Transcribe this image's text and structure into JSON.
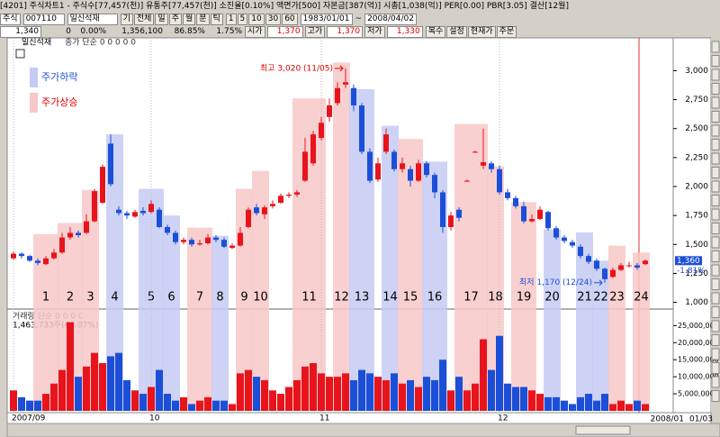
{
  "window": {
    "title": "[4201] 주식차트1 - 주식수[77,457(천)] 유통주[77,457(천)] 소진율[0.10%] 액면가[500] 자본금[387(억)] 시총[1,038(억)] PER[0.00] PBR[3.05] 결산[12월]"
  },
  "toolbar": {
    "market": "주식",
    "code": "007110",
    "name": "일신석재",
    "buttons": [
      "기",
      "전체",
      "일",
      "주",
      "월",
      "분",
      "틱"
    ],
    "intervals": [
      "1",
      "5",
      "10",
      "30",
      "60"
    ],
    "start_date": "1983/01/01",
    "end_date": "2008/04/02"
  },
  "quote": {
    "price": "1,340",
    "change": "0",
    "change_rate": "0.00%",
    "volume": "1,356,100",
    "ratio1": "86.85%",
    "ratio2": "1.75%",
    "fields": [
      {
        "label": "시가",
        "value": "1,370"
      },
      {
        "label": "고가",
        "value": "1,370"
      },
      {
        "label": "저가",
        "value": "1,330"
      }
    ],
    "buttons": [
      "복수",
      "설정",
      "현재가",
      "주문"
    ]
  },
  "chart_data": {
    "type": "candlestick",
    "title": "일신석재",
    "indicator": "종가 단순 0 0 0 0 0",
    "up_color": "#e8141c",
    "down_color": "#1c4fd8",
    "legend": [
      {
        "label": "주가하락",
        "color": "#c5cbf3"
      },
      {
        "label": "주가상승",
        "color": "#f8c8c8"
      }
    ],
    "ylim": [
      950,
      3260
    ],
    "yticks": [
      {
        "value": 1000,
        "label": "1,000"
      },
      {
        "value": 1250,
        "label": "1,250"
      },
      {
        "value": 1500,
        "label": "1,500"
      },
      {
        "value": 1750,
        "label": "1,750"
      },
      {
        "value": 2000,
        "label": "2,000"
      },
      {
        "value": 2250,
        "label": "2,250"
      },
      {
        "value": 2500,
        "label": "2,500"
      },
      {
        "value": 2750,
        "label": "2,750"
      },
      {
        "value": 3000,
        "label": "3,000"
      }
    ],
    "categories": [
      "2007/09",
      null,
      null,
      null,
      null,
      null,
      null,
      null,
      null,
      null,
      null,
      null,
      null,
      null,
      null,
      null,
      null,
      "10",
      null,
      null,
      null,
      null,
      null,
      null,
      null,
      null,
      null,
      null,
      null,
      null,
      null,
      null,
      null,
      null,
      null,
      null,
      null,
      null,
      "11",
      null,
      null,
      null,
      null,
      null,
      null,
      null,
      null,
      null,
      null,
      null,
      null,
      null,
      null,
      null,
      null,
      null,
      null,
      null,
      null,
      null,
      "12",
      null,
      null,
      null,
      null,
      null,
      null,
      null,
      null,
      null,
      null,
      null,
      null,
      null,
      null,
      null,
      null,
      null,
      "2008/01"
    ],
    "last_date": "01/03",
    "candles": [
      [
        1380,
        1440,
        1370,
        1420
      ],
      [
        1420,
        1430,
        1380,
        1400
      ],
      [
        1400,
        1410,
        1350,
        1360
      ],
      [
        1360,
        1380,
        1320,
        1340
      ],
      [
        1330,
        1400,
        1320,
        1380
      ],
      [
        1380,
        1460,
        1370,
        1430
      ],
      [
        1430,
        1600,
        1420,
        1560
      ],
      [
        1560,
        1650,
        1540,
        1600
      ],
      [
        1600,
        1620,
        1560,
        1580
      ],
      [
        1600,
        1760,
        1590,
        1700
      ],
      [
        1700,
        1980,
        1690,
        1960
      ],
      [
        1860,
        2190,
        1850,
        2170
      ],
      [
        2370,
        2450,
        2000,
        2020
      ],
      [
        1800,
        1830,
        1750,
        1770
      ],
      [
        1770,
        1790,
        1720,
        1750
      ],
      [
        1740,
        1800,
        1730,
        1780
      ],
      [
        1790,
        1820,
        1750,
        1770
      ],
      [
        1780,
        1880,
        1770,
        1850
      ],
      [
        1800,
        1820,
        1640,
        1650
      ],
      [
        1650,
        1670,
        1580,
        1600
      ],
      [
        1600,
        1620,
        1500,
        1520
      ],
      [
        1520,
        1560,
        1500,
        1540
      ],
      [
        1540,
        1560,
        1480,
        1500
      ],
      [
        1500,
        1540,
        1490,
        1510
      ],
      [
        1510,
        1590,
        1500,
        1560
      ],
      [
        1560,
        1580,
        1520,
        1540
      ],
      [
        1540,
        1560,
        1470,
        1480
      ],
      [
        1470,
        1510,
        1460,
        1490
      ],
      [
        1490,
        1650,
        1480,
        1600
      ],
      [
        1650,
        1820,
        1640,
        1800
      ],
      [
        1820,
        1850,
        1750,
        1770
      ],
      [
        1760,
        1840,
        1720,
        1820
      ],
      [
        1830,
        1880,
        1810,
        1850
      ],
      [
        1860,
        1940,
        1850,
        1920
      ],
      [
        1920,
        1950,
        1900,
        1930
      ],
      [
        1930,
        1970,
        1910,
        1950
      ],
      [
        2050,
        2420,
        2040,
        2300
      ],
      [
        2200,
        2480,
        2180,
        2450
      ],
      [
        2420,
        2600,
        2400,
        2550
      ],
      [
        2600,
        2760,
        2560,
        2700
      ],
      [
        2720,
        2900,
        2700,
        2850
      ],
      [
        2880,
        3020,
        2850,
        2900
      ],
      [
        2850,
        2880,
        2650,
        2700
      ],
      [
        2700,
        2720,
        2280,
        2300
      ],
      [
        2300,
        2330,
        2030,
        2050
      ],
      [
        2060,
        2250,
        2040,
        2200
      ],
      [
        2300,
        2500,
        2280,
        2450
      ],
      [
        2300,
        2320,
        2130,
        2150
      ],
      [
        2150,
        2250,
        2120,
        2200
      ],
      [
        2150,
        2180,
        2000,
        2050
      ],
      [
        2050,
        2230,
        2040,
        2200
      ],
      [
        2200,
        2220,
        2080,
        2100
      ],
      [
        2100,
        2120,
        1900,
        1950
      ],
      [
        1950,
        1970,
        1600,
        1650
      ],
      [
        1650,
        1780,
        1620,
        1750
      ],
      [
        1800,
        1820,
        1700,
        1730
      ],
      [
        2050,
        2060,
        2040,
        2050
      ],
      [
        2300,
        2310,
        2290,
        2300
      ],
      [
        2180,
        2500,
        2150,
        2210
      ],
      [
        2200,
        2220,
        2120,
        2150
      ],
      [
        2150,
        2180,
        1930,
        1950
      ],
      [
        1950,
        1980,
        1880,
        1900
      ],
      [
        1900,
        1920,
        1810,
        1830
      ],
      [
        1830,
        1870,
        1680,
        1700
      ],
      [
        1700,
        1760,
        1690,
        1720
      ],
      [
        1720,
        1830,
        1710,
        1800
      ],
      [
        1780,
        1790,
        1620,
        1640
      ],
      [
        1640,
        1660,
        1540,
        1560
      ],
      [
        1560,
        1580,
        1510,
        1530
      ],
      [
        1520,
        1540,
        1470,
        1490
      ],
      [
        1480,
        1500,
        1380,
        1400
      ],
      [
        1400,
        1420,
        1330,
        1350
      ],
      [
        1360,
        1380,
        1270,
        1290
      ],
      [
        1290,
        1300,
        1170,
        1200
      ],
      [
        1220,
        1300,
        1210,
        1280
      ],
      [
        1280,
        1340,
        1270,
        1320
      ],
      [
        1320,
        1350,
        1300,
        1320
      ],
      [
        1320,
        1340,
        1280,
        1300
      ],
      [
        1330,
        1370,
        1320,
        1360
      ]
    ],
    "zones": [
      {
        "label": "1",
        "color": "#f8c8c8",
        "top": 1590
      },
      {
        "label": "2",
        "color": "#f8c8c8",
        "top": 1685
      },
      {
        "label": "3",
        "color": "#f8c8c8",
        "top": 1970
      },
      {
        "label": "4",
        "color": "#c5cbf3",
        "top": 2450
      },
      {
        "label": "5",
        "color": "#c5cbf3",
        "top": 1980
      },
      {
        "label": "6",
        "color": "#c5cbf3",
        "top": 1750
      },
      {
        "label": "7",
        "color": "#f8c8c8",
        "top": 1645
      },
      {
        "label": "8",
        "color": "#c5cbf3",
        "top": 1575
      },
      {
        "label": "9",
        "color": "#f8c8c8",
        "top": 1980
      },
      {
        "label": "10",
        "color": "#f8c8c8",
        "top": 2135
      },
      {
        "label": "11",
        "color": "#f8c8c8",
        "top": 2760
      },
      {
        "label": "12",
        "color": "#f8c8c8",
        "top": 3070
      },
      {
        "label": "13",
        "color": "#c5cbf3",
        "top": 2840
      },
      {
        "label": "14",
        "color": "#c5cbf3",
        "top": 2525
      },
      {
        "label": "15",
        "color": "#f8c8c8",
        "top": 2410
      },
      {
        "label": "16",
        "color": "#c5cbf3",
        "top": 2215
      },
      {
        "label": "17",
        "color": "#f8c8c8",
        "top": 2540
      },
      {
        "label": "18",
        "color": "#f8c8c8",
        "top": 2175
      },
      {
        "label": "19",
        "color": "#f8c8c8",
        "top": 1865
      },
      {
        "label": "20",
        "color": "#c5cbf3",
        "top": 1630
      },
      {
        "label": "21",
        "color": "#c5cbf3",
        "top": 1605
      },
      {
        "label": "22",
        "color": "#c5cbf3",
        "top": 1360
      },
      {
        "label": "23",
        "color": "#f8c8c8",
        "top": 1490
      },
      {
        "label": "24",
        "color": "#f8c8c8",
        "top": 1430
      }
    ],
    "annotations": {
      "high": "최고 3,020 (11/05)",
      "low": "최저 1,170 (12/24)"
    },
    "current": {
      "value": 1360,
      "label": "1,360",
      "change": "-1.81%"
    },
    "volume_title": "거래량 단순 0 0 0 0",
    "volume_info": "1,463,733주(64.07%)",
    "volume_ylim": [
      0,
      28000000
    ],
    "volume_yticks": [
      {
        "value": 5000000,
        "label": "5,000,000"
      },
      {
        "value": 10000000,
        "label": "10,000,000"
      },
      {
        "value": 15000000,
        "label": "15,000,000"
      },
      {
        "value": 20000000,
        "label": "20,000,000"
      },
      {
        "value": 25000000,
        "label": "25,000,000"
      }
    ],
    "volume": [
      6000000,
      4000000,
      3000000,
      3000000,
      5000000,
      8000000,
      12000000,
      26000000,
      10000000,
      13000000,
      17000000,
      14000000,
      16000000,
      17000000,
      9000000,
      6000000,
      5000000,
      7000000,
      12000000,
      5000000,
      3000000,
      4000000,
      2000000,
      3000000,
      4000000,
      3000000,
      3000000,
      2000000,
      11000000,
      12000000,
      10000000,
      9000000,
      6000000,
      5000000,
      7000000,
      9000000,
      13000000,
      14000000,
      11000000,
      10000000,
      10000000,
      11000000,
      9000000,
      12000000,
      11000000,
      10000000,
      9000000,
      11000000,
      8000000,
      9000000,
      7000000,
      10000000,
      9000000,
      15000000,
      6000000,
      10000000,
      6000000,
      8000000,
      21000000,
      12000000,
      22000000,
      8000000,
      7000000,
      7000000,
      6000000,
      5000000,
      4000000,
      4000000,
      3000000,
      2000000,
      4000000,
      5000000,
      3000000,
      5000000,
      2000000,
      3000000,
      2000000,
      3000000,
      2000000
    ]
  }
}
